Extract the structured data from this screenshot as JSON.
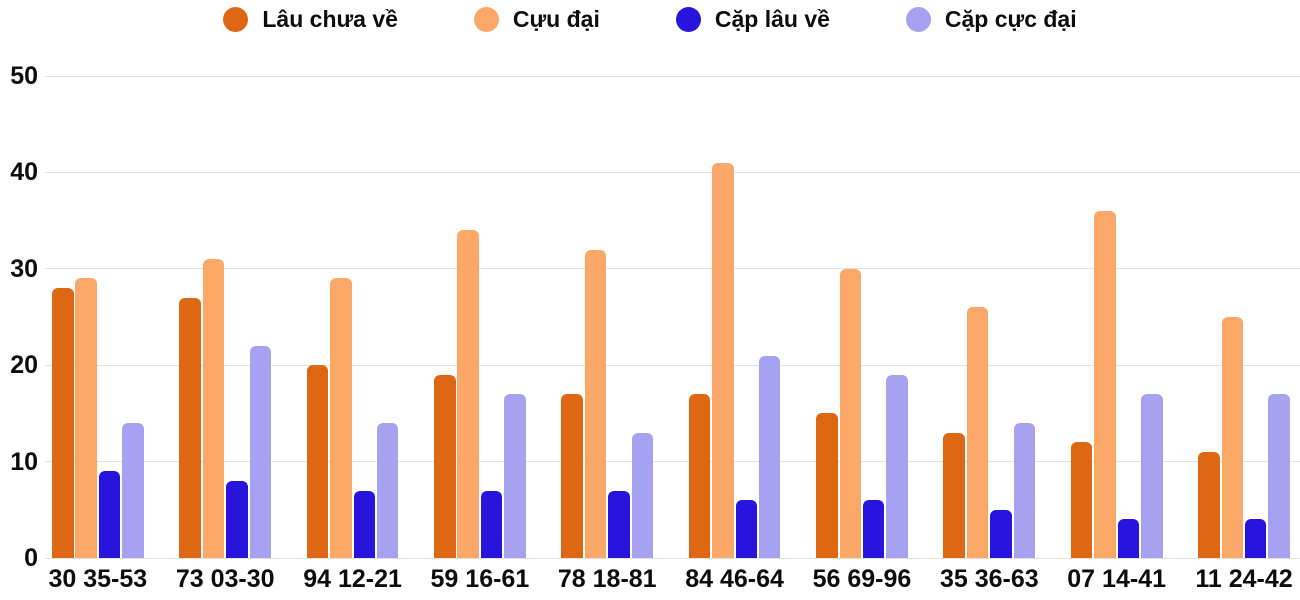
{
  "chart_data": {
    "type": "bar",
    "title": "",
    "xlabel": "",
    "ylabel": "",
    "categories": [
      "30 35-53",
      "73 03-30",
      "94 12-21",
      "59 16-61",
      "78 18-81",
      "84 46-64",
      "56 69-96",
      "35 36-63",
      "07 14-41",
      "11 24-42"
    ],
    "series": [
      {
        "name": "Lâu chưa về",
        "color": "#dd6713",
        "values": [
          28,
          27,
          20,
          19,
          17,
          17,
          15,
          13,
          12,
          11
        ]
      },
      {
        "name": "Cựu đại",
        "color": "#fba767",
        "values": [
          29,
          31,
          29,
          34,
          32,
          41,
          30,
          26,
          36,
          25
        ]
      },
      {
        "name": "Cặp lâu về",
        "color": "#2715dd",
        "values": [
          9,
          8,
          7,
          7,
          7,
          6,
          6,
          5,
          4,
          4
        ]
      },
      {
        "name": "Cặp cực đại",
        "color": "#a6a2f1",
        "values": [
          14,
          22,
          14,
          17,
          13,
          21,
          19,
          14,
          17,
          17
        ]
      }
    ],
    "y_ticks": [
      0,
      10,
      20,
      30,
      40,
      50
    ],
    "ylim": [
      0,
      50
    ],
    "grid": true,
    "legend_position": "top",
    "gridline_color": "#e2e2e2",
    "text_color": "#0d0d0d"
  }
}
